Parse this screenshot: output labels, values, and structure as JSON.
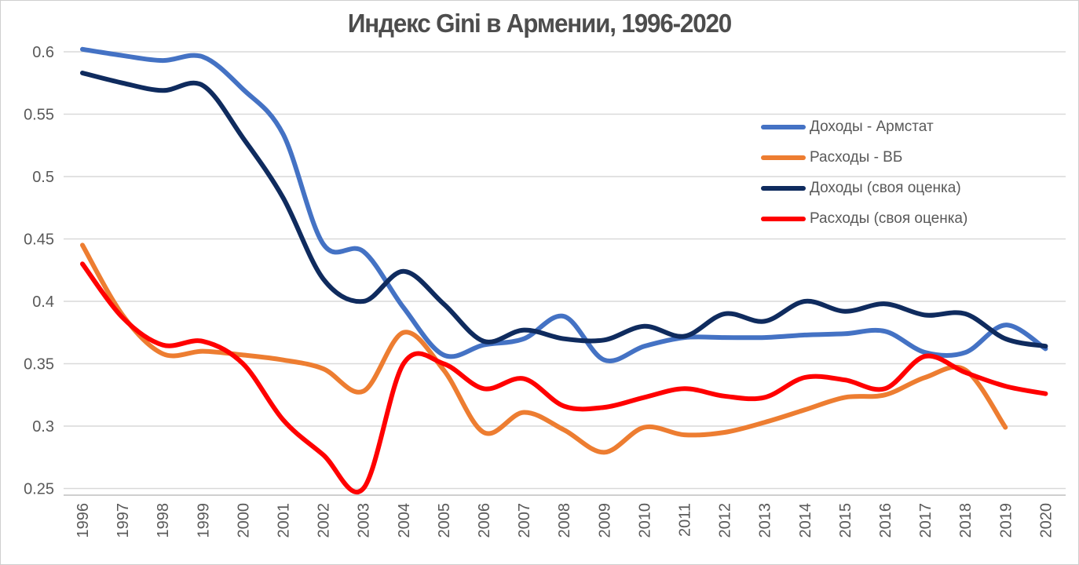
{
  "title": "Индекс Gini в Армении, 1996-2020",
  "colors": {
    "series_blue": "#4472C4",
    "series_orange": "#ED7D31",
    "series_navy": "#0F2B5E",
    "series_red": "#FF0000",
    "gridline": "#D9D9D9",
    "axis_line": "#BFBFBF",
    "tick_label": "#595959",
    "title_text": "#4D4D4D",
    "background": "#FFFFFF"
  },
  "chart_data": {
    "type": "line",
    "title": "Индекс Gini в Армении, 1996-2020",
    "xlabel": "",
    "ylabel": "",
    "grid": true,
    "smooth": true,
    "legend_position": "upper-right-inside",
    "ylim": [
      0.245,
      0.6
    ],
    "yticks": [
      0.6,
      0.55,
      0.5,
      0.45,
      0.4,
      0.35,
      0.3,
      0.25
    ],
    "ytick_labels": [
      "0.6",
      "0.55",
      "0.5",
      "0.45",
      "0.4",
      "0.35",
      "0.3",
      "0.25"
    ],
    "x": [
      1996,
      1997,
      1998,
      1999,
      2000,
      2001,
      2002,
      2003,
      2004,
      2005,
      2006,
      2007,
      2008,
      2009,
      2010,
      2011,
      2012,
      2013,
      2014,
      2015,
      2016,
      2017,
      2018,
      2019,
      2020
    ],
    "series": [
      {
        "name": "Доходы - Армстат",
        "color": "#4472C4",
        "values": [
          0.602,
          0.597,
          0.593,
          0.596,
          0.57,
          0.534,
          0.446,
          0.44,
          0.395,
          0.357,
          0.365,
          0.37,
          0.388,
          0.353,
          0.364,
          0.371,
          0.371,
          0.371,
          0.373,
          0.374,
          0.376,
          0.359,
          0.359,
          0.381,
          0.362
        ]
      },
      {
        "name": "Расходы - ВБ",
        "color": "#ED7D31",
        "values": [
          0.445,
          0.389,
          0.358,
          0.36,
          0.357,
          0.353,
          0.346,
          0.328,
          0.375,
          0.345,
          0.295,
          0.311,
          0.297,
          0.279,
          0.299,
          0.293,
          0.295,
          0.303,
          0.313,
          0.323,
          0.325,
          0.339,
          0.345,
          0.299,
          null
        ]
      },
      {
        "name": "Доходы (своя оценка)",
        "color": "#0F2B5E",
        "values": [
          0.583,
          0.575,
          0.569,
          0.573,
          0.531,
          0.483,
          0.418,
          0.4,
          0.424,
          0.398,
          0.368,
          0.377,
          0.37,
          0.369,
          0.38,
          0.372,
          0.39,
          0.384,
          0.4,
          0.392,
          0.398,
          0.389,
          0.39,
          0.37,
          0.364
        ]
      },
      {
        "name": "Расходы (своя оценка)",
        "color": "#FF0000",
        "values": [
          0.43,
          0.387,
          0.365,
          0.368,
          0.35,
          0.305,
          0.277,
          0.25,
          0.35,
          0.35,
          0.33,
          0.338,
          0.316,
          0.315,
          0.323,
          0.33,
          0.324,
          0.323,
          0.339,
          0.337,
          0.33,
          0.356,
          0.343,
          0.332,
          0.326
        ]
      }
    ]
  }
}
